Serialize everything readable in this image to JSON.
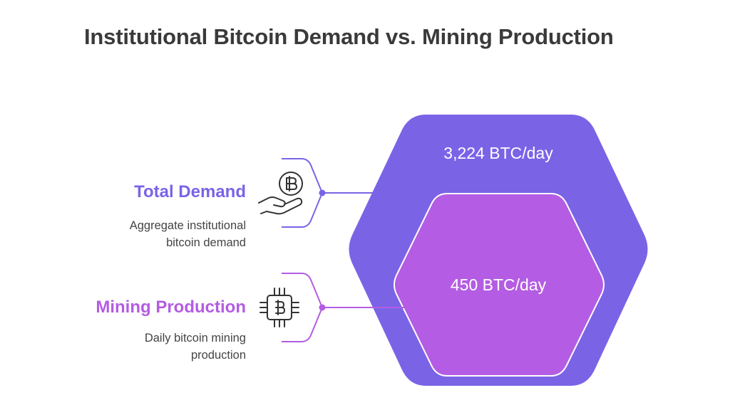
{
  "title": "Institutional Bitcoin Demand vs. Mining Production",
  "items": [
    {
      "title": "Total Demand",
      "description_lines": [
        "Aggregate institutional",
        "bitcoin demand"
      ],
      "value": "3,224 BTC/day",
      "color": "#7B63E6",
      "icon": "hand-bitcoin-icon"
    },
    {
      "title": "Mining Production",
      "description_lines": [
        "Daily bitcoin mining",
        "production"
      ],
      "value": "450 BTC/day",
      "color": "#B45CE3",
      "icon": "bitcoin-chip-icon"
    }
  ]
}
